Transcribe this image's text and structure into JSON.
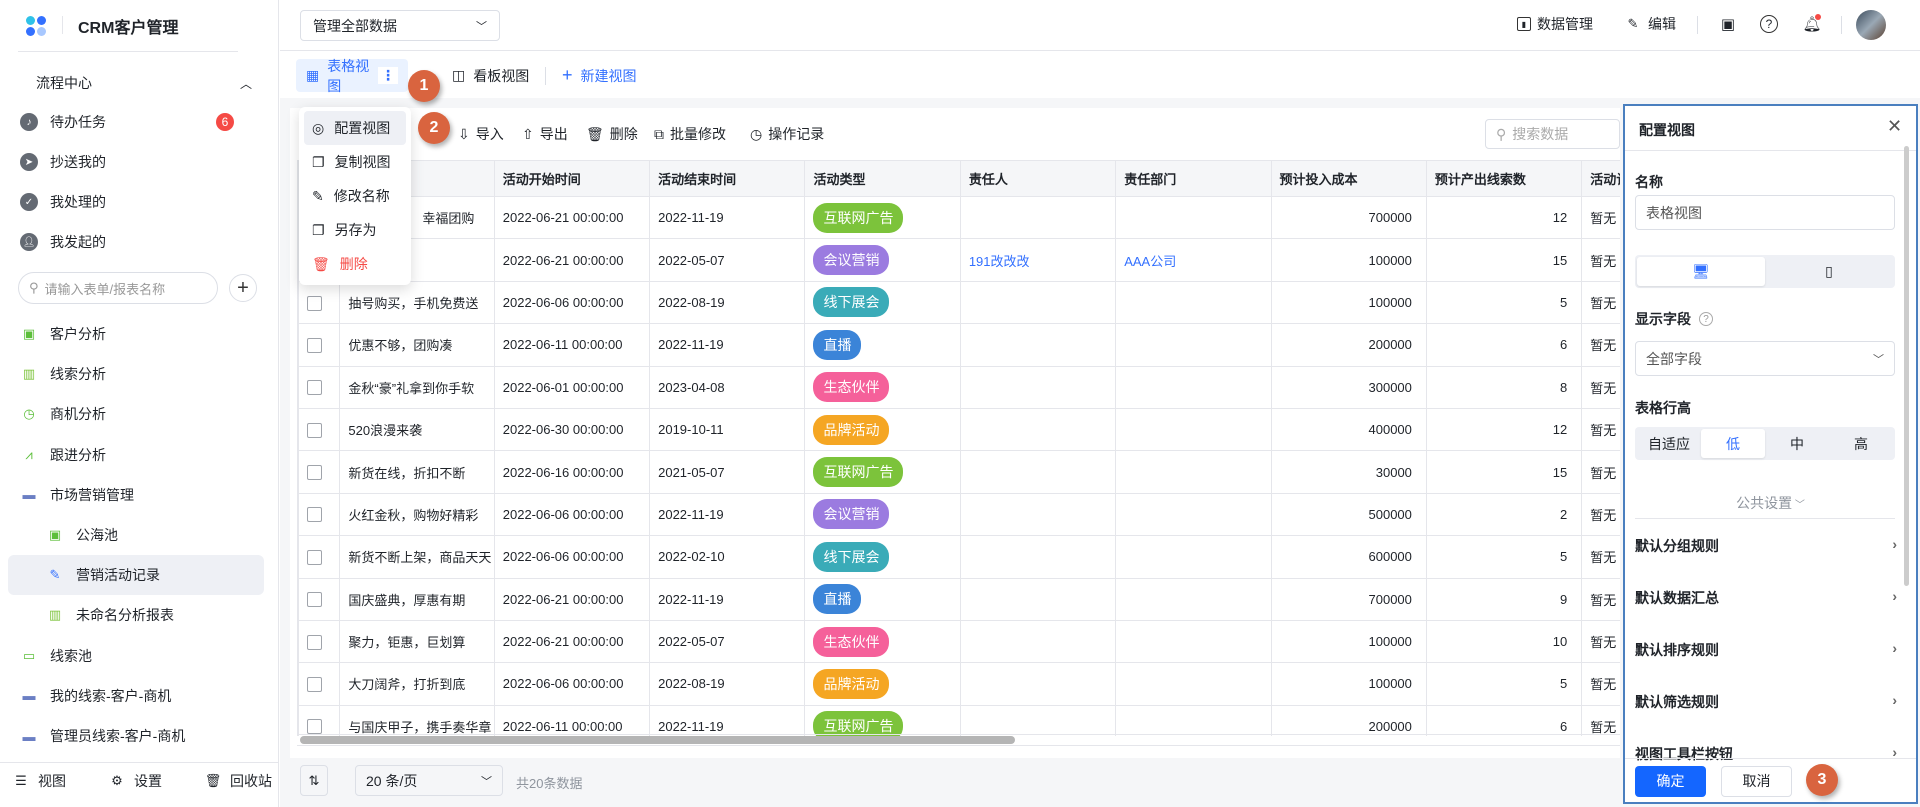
{
  "app": {
    "title": "CRM客户管理"
  },
  "sidebar": {
    "section": "流程中心",
    "tasks": [
      {
        "label": "待办任务",
        "count": "6",
        "icon": "bell-icon"
      },
      {
        "label": "抄送我的",
        "icon": "send-icon"
      },
      {
        "label": "我处理的",
        "icon": "check-circle-icon"
      },
      {
        "label": "我发起的",
        "icon": "user-icon"
      }
    ],
    "search_placeholder": "请输入表单/报表名称",
    "items": [
      {
        "label": "客户分析",
        "icon": "contact-card-icon",
        "level": 0
      },
      {
        "label": "线索分析",
        "icon": "bar-chart-icon",
        "level": 0
      },
      {
        "label": "商机分析",
        "icon": "clock-icon",
        "level": 0
      },
      {
        "label": "跟进分析",
        "icon": "line-chart-icon",
        "level": 0
      },
      {
        "label": "市场营销管理",
        "icon": "folder-open-icon",
        "level": 0
      },
      {
        "label": "公海池",
        "icon": "contact-card-icon",
        "level": 1
      },
      {
        "label": "营销活动记录",
        "icon": "edit-form-icon",
        "level": 1,
        "active": true
      },
      {
        "label": "未命名分析报表",
        "icon": "bar-chart-icon",
        "level": 1
      },
      {
        "label": "线索池",
        "icon": "presentation-icon",
        "level": 0
      },
      {
        "label": "我的线索-客户-商机",
        "icon": "folder-icon",
        "level": 0
      },
      {
        "label": "管理员线索-客户-商机",
        "icon": "folder-icon",
        "level": 0
      }
    ],
    "footer": {
      "view": "视图",
      "settings": "设置",
      "recycle": "回收站"
    }
  },
  "topbar": {
    "scope": "管理全部数据",
    "data_manage": "数据管理",
    "edit": "编辑"
  },
  "views": {
    "table": "表格视图",
    "kanban": "看板视图",
    "new": "新建视图"
  },
  "view_menu": [
    "配置视图",
    "复制视图",
    "修改名称",
    "另存为",
    "删除"
  ],
  "toolbar": {
    "import": "导入",
    "export": "导出",
    "delete": "删除",
    "batch_edit": "批量修改",
    "log": "操作记录",
    "search_placeholder": "搜索数据"
  },
  "table": {
    "columns": [
      "",
      "活动开始时间",
      "活动结束时间",
      "活动类型",
      "责任人",
      "责任部门",
      "预计投入成本",
      "预计产出线索数",
      "活动计划"
    ],
    "rows": [
      [
        "幸福团购",
        "2022-06-21 00:00:00",
        "2022-11-19",
        "互联网广告",
        "",
        "",
        "700000",
        "12",
        "暂无"
      ],
      [
        "",
        "2022-06-21 00:00:00",
        "2022-05-07",
        "会议营销",
        "191改改改",
        "AAA公司",
        "100000",
        "15",
        "暂无"
      ],
      [
        "抽号购买，手机免费送",
        "2022-06-06 00:00:00",
        "2022-08-19",
        "线下展会",
        "",
        "",
        "100000",
        "5",
        "暂无"
      ],
      [
        "优惠不够，团购凑",
        "2022-06-11 00:00:00",
        "2022-11-19",
        "直播",
        "",
        "",
        "200000",
        "6",
        "暂无"
      ],
      [
        "金秋“豪”礼拿到你手软",
        "2022-06-01 00:00:00",
        "2023-04-08",
        "生态伙伴",
        "",
        "",
        "300000",
        "8",
        "暂无"
      ],
      [
        "520浪漫来袭",
        "2022-06-30 00:00:00",
        "2019-10-11",
        "品牌活动",
        "",
        "",
        "400000",
        "12",
        "暂无"
      ],
      [
        "新货在线，折扣不断",
        "2022-06-16 00:00:00",
        "2021-05-07",
        "互联网广告",
        "",
        "",
        "30000",
        "15",
        "暂无"
      ],
      [
        "火红金秋，购物好精彩",
        "2022-06-06 00:00:00",
        "2022-11-19",
        "会议营销",
        "",
        "",
        "500000",
        "2",
        "暂无"
      ],
      [
        "新货不断上架，商品天天",
        "2022-06-06 00:00:00",
        "2022-02-10",
        "线下展会",
        "",
        "",
        "600000",
        "5",
        "暂无"
      ],
      [
        "国庆盛典，厚惠有期",
        "2022-06-21 00:00:00",
        "2022-11-19",
        "直播",
        "",
        "",
        "700000",
        "9",
        "暂无"
      ],
      [
        "聚力，钜惠，巨划算",
        "2022-06-21 00:00:00",
        "2022-05-07",
        "生态伙伴",
        "",
        "",
        "100000",
        "10",
        "暂无"
      ],
      [
        "大刀阔斧，打折到底",
        "2022-06-06 00:00:00",
        "2022-08-19",
        "品牌活动",
        "",
        "",
        "100000",
        "5",
        "暂无"
      ],
      [
        "与国庆甲子，携手奏华章",
        "2022-06-11 00:00:00",
        "2022-11-19",
        "互联网广告",
        "",
        "",
        "200000",
        "6",
        "暂无"
      ]
    ],
    "tag_colors": {
      "互联网广告": "#7cc33b",
      "会议营销": "#9b7be0",
      "线下展会": "#3aabb8",
      "直播": "#3b84d8",
      "生态伙伴": "#f5609a",
      "品牌活动": "#f5a623"
    }
  },
  "footer": {
    "page_size": "20 条/页",
    "total": "共20条数据"
  },
  "steps": [
    "1",
    "2",
    "3"
  ],
  "panel": {
    "title": "配置视图",
    "name_label": "名称",
    "name_value": "表格视图",
    "fields_label": "显示字段",
    "fields_value": "全部字段",
    "row_height_label": "表格行高",
    "row_heights": [
      "自适应",
      "低",
      "中",
      "高"
    ],
    "row_height_selected": "低",
    "common": "公共设置",
    "rules": [
      "默认分组规则",
      "默认数据汇总",
      "默认排序规则",
      "默认筛选规则",
      "视图工具栏按钮"
    ],
    "ok": "确定",
    "cancel": "取消"
  },
  "colors": {
    "accent": "#3370ff",
    "primary_button": "#1466ff",
    "step_marker": "#d9643f",
    "danger": "#f54a45"
  }
}
